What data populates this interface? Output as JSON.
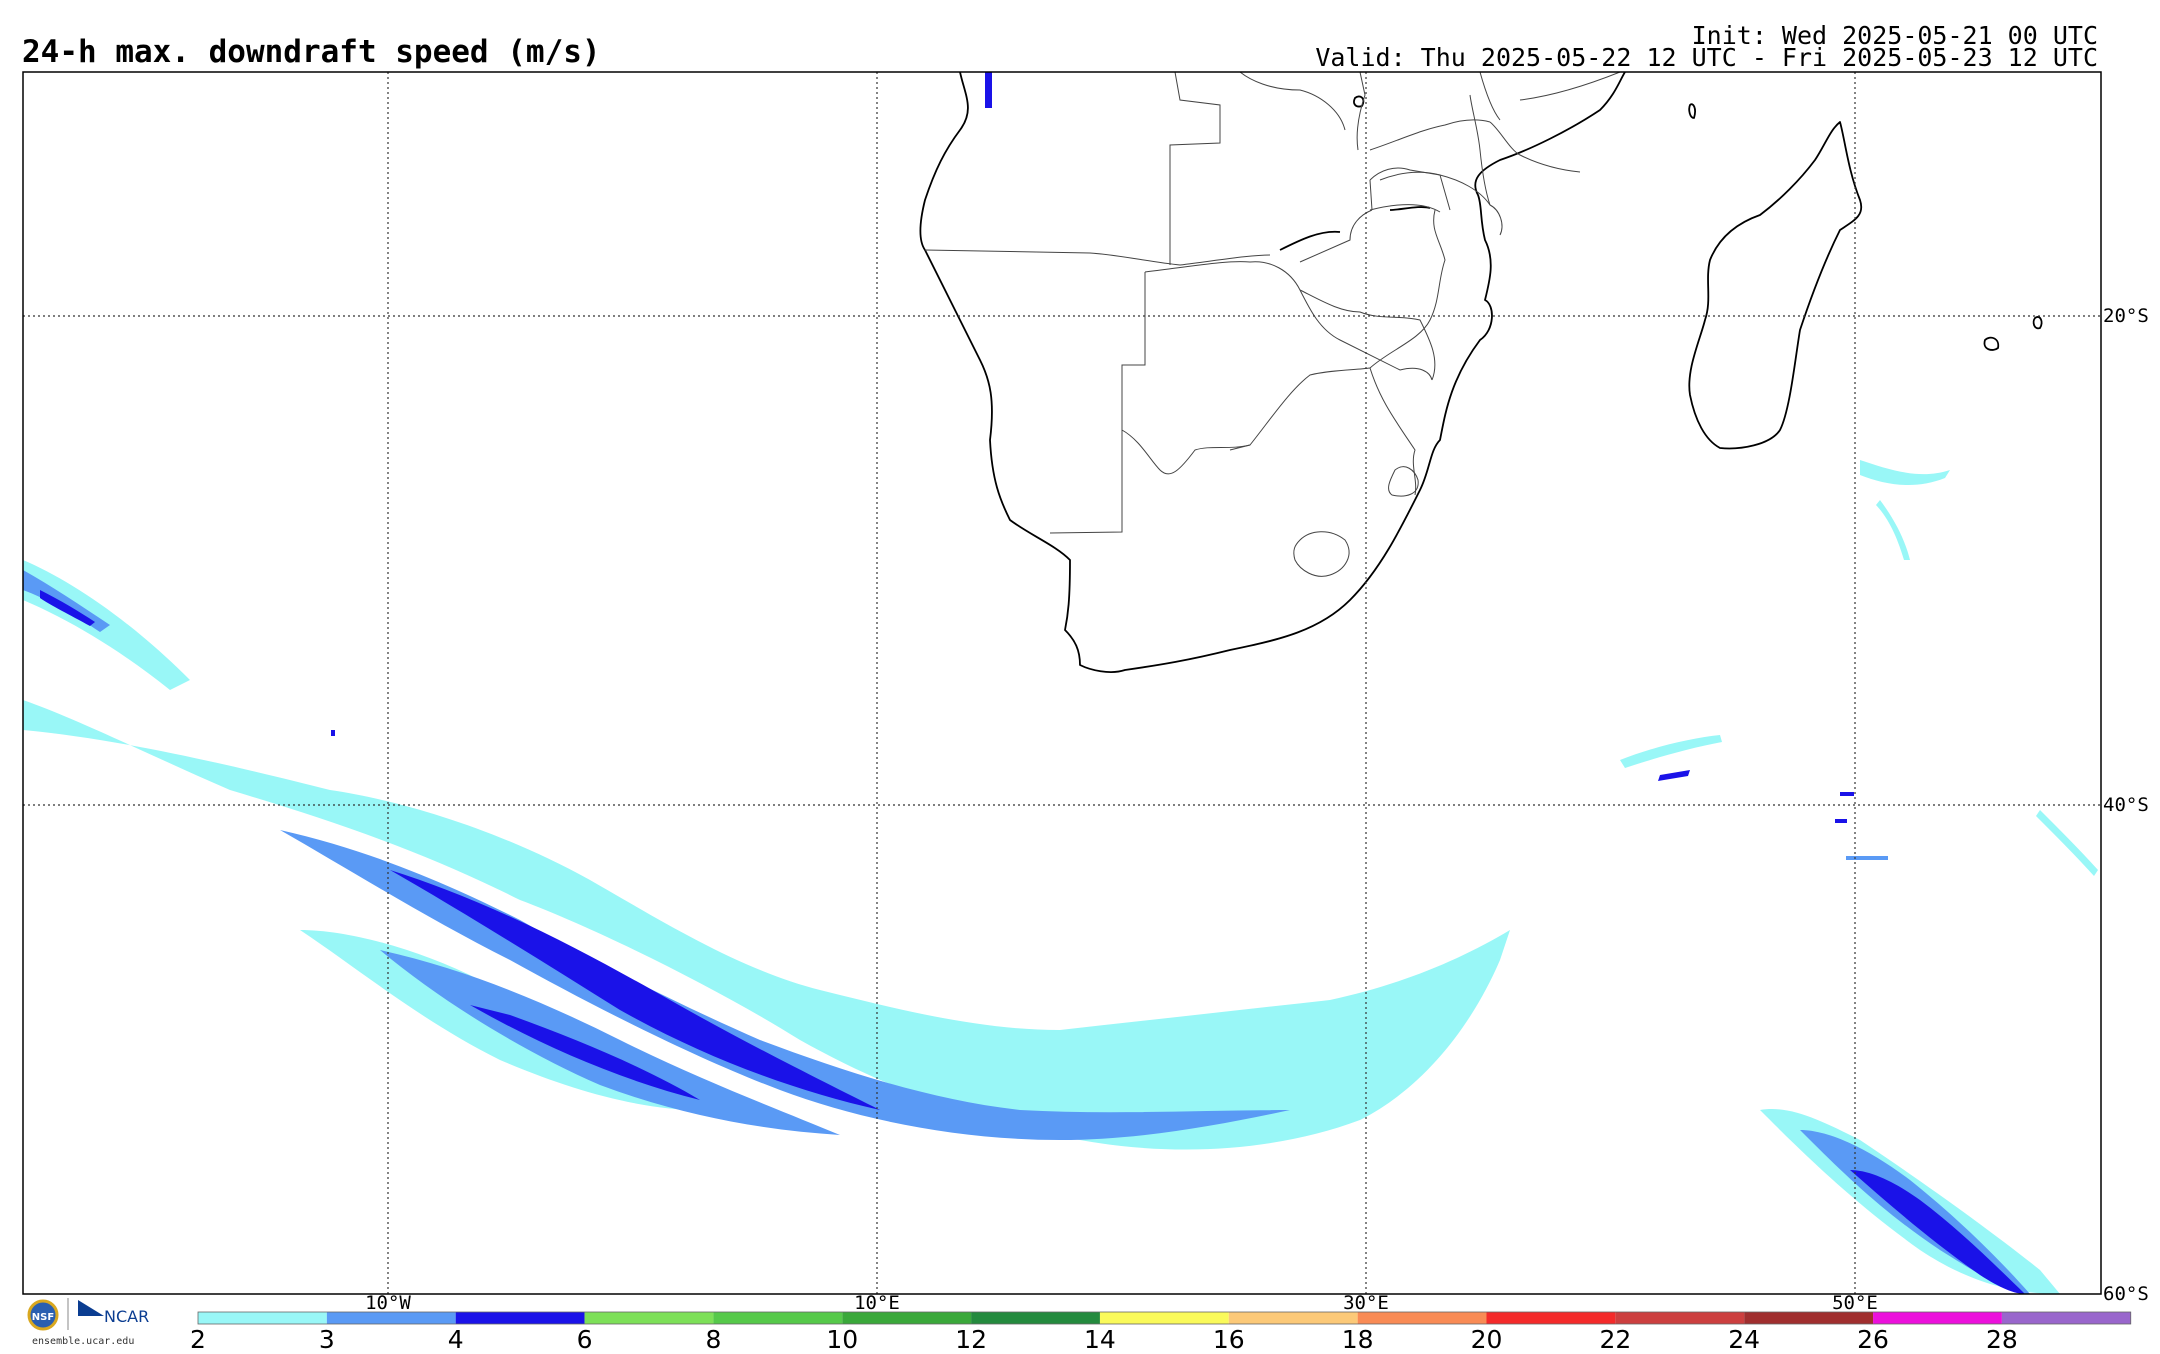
{
  "header": {
    "title": "24-h max. downdraft speed (m/s)",
    "init": "Init: Wed 2025-05-21 00 UTC",
    "valid": "Valid: Thu 2025-05-22 12 UTC - Fri 2025-05-23 12 UTC"
  },
  "map": {
    "latitude_labels": [
      "20°S",
      "40°S",
      "60°S"
    ],
    "longitude_labels": [
      "10°W",
      "10°E",
      "30°E",
      "50°E"
    ],
    "colors": {
      "light_cyan": "#99f7f7",
      "medium_blue": "#5a9af5",
      "dark_blue": "#1a12e8"
    }
  },
  "colorbar": {
    "ticks": [
      "2",
      "3",
      "4",
      "6",
      "8",
      "10",
      "12",
      "14",
      "16",
      "18",
      "20",
      "22",
      "24",
      "26",
      "28"
    ],
    "colors": [
      "#99f7f7",
      "#5a9af5",
      "#1a12e8",
      "#7de058",
      "#56c94a",
      "#3aa83a",
      "#248a3e",
      "#fafa5a",
      "#fcc978",
      "#f98b55",
      "#f42a2a",
      "#cc3f3f",
      "#a02e2e",
      "#ec10dc",
      "#9966cc"
    ]
  },
  "logos": {
    "nsf": "NSF",
    "ncar": "NCAR",
    "url": "ensemble.ucar.edu"
  }
}
